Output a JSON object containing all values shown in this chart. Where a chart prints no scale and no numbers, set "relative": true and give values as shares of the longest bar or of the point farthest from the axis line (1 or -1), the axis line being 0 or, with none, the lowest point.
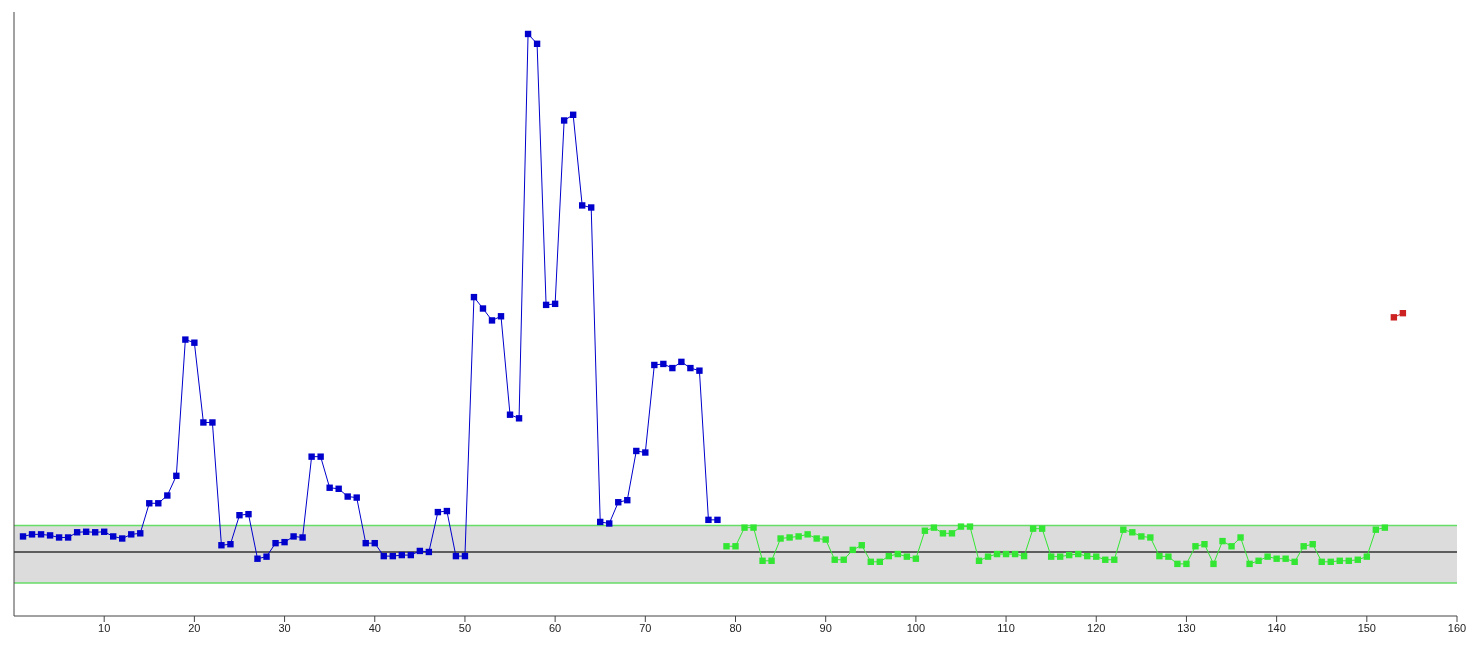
{
  "chart_data": {
    "type": "line",
    "relative": true,
    "marker": "square",
    "line_style": "solid",
    "grid": false,
    "legend": false,
    "xlim": [
      0,
      160
    ],
    "xticks": [
      10,
      20,
      30,
      40,
      50,
      60,
      70,
      80,
      90,
      100,
      110,
      120,
      130,
      140,
      150,
      160
    ],
    "series": [
      {
        "color": "#0000cc",
        "x": [
          1,
          2,
          3,
          4,
          5,
          6,
          7,
          8,
          9,
          10,
          11,
          12,
          13,
          14,
          15,
          16,
          17,
          18,
          19,
          20,
          21,
          22,
          23,
          24,
          25,
          26,
          27,
          28,
          29,
          30,
          31,
          32,
          33,
          34,
          35,
          36,
          37,
          38,
          39,
          40,
          41,
          42,
          43,
          44,
          45,
          46,
          47,
          48,
          49,
          50,
          51,
          52,
          53,
          54,
          55,
          56,
          57,
          58,
          59,
          60,
          61,
          62,
          63,
          64,
          65,
          66,
          67,
          68,
          69,
          70,
          71,
          72,
          73,
          74,
          75,
          76,
          77,
          78
        ],
        "values": [
          0.03,
          0.034,
          0.034,
          0.032,
          0.028,
          0.028,
          0.038,
          0.039,
          0.038,
          0.039,
          0.03,
          0.026,
          0.034,
          0.036,
          0.094,
          0.094,
          0.109,
          0.147,
          0.41,
          0.404,
          0.25,
          0.25,
          0.013,
          0.015,
          0.071,
          0.073,
          -0.013,
          -0.009,
          0.017,
          0.019,
          0.03,
          0.028,
          0.184,
          0.184,
          0.124,
          0.122,
          0.107,
          0.105,
          0.017,
          0.017,
          -0.008,
          -0.008,
          -0.006,
          -0.006,
          0.002,
          0,
          0.077,
          0.079,
          -0.008,
          -0.008,
          0.492,
          0.47,
          0.447,
          0.455,
          0.265,
          0.258,
          1,
          0.981,
          0.477,
          0.479,
          0.833,
          0.844,
          0.669,
          0.665,
          0.058,
          0.055,
          0.096,
          0.1,
          0.195,
          0.192,
          0.361,
          0.363,
          0.355,
          0.367,
          0.355,
          0.35,
          0.062,
          0.062
        ]
      },
      {
        "color": "#33e633",
        "x": [
          79,
          80,
          81,
          82,
          83,
          84,
          85,
          86,
          87,
          88,
          89,
          90,
          91,
          92,
          93,
          94,
          95,
          96,
          97,
          98,
          99,
          100,
          101,
          102,
          103,
          104,
          105,
          106,
          107,
          108,
          109,
          110,
          111,
          112,
          113,
          114,
          115,
          116,
          117,
          118,
          119,
          120,
          121,
          122,
          123,
          124,
          125,
          126,
          127,
          128,
          129,
          130,
          131,
          132,
          133,
          134,
          135,
          136,
          137,
          138,
          139,
          140,
          141,
          142,
          143,
          144,
          145,
          146,
          147,
          148,
          149,
          150,
          151,
          152
        ],
        "values": [
          0.011,
          0.011,
          0.047,
          0.047,
          -0.017,
          -0.017,
          0.026,
          0.028,
          0.03,
          0.034,
          0.026,
          0.024,
          -0.015,
          -0.015,
          0.004,
          0.013,
          -0.019,
          -0.019,
          -0.008,
          -0.004,
          -0.009,
          -0.013,
          0.041,
          0.047,
          0.036,
          0.036,
          0.049,
          0.049,
          -0.017,
          -0.009,
          -0.004,
          -0.004,
          -0.004,
          -0.008,
          0.045,
          0.045,
          -0.009,
          -0.009,
          -0.006,
          -0.004,
          -0.008,
          -0.009,
          -0.015,
          -0.015,
          0.043,
          0.038,
          0.03,
          0.028,
          -0.008,
          -0.009,
          -0.023,
          -0.023,
          0.011,
          0.015,
          -0.023,
          0.021,
          0.011,
          0.028,
          -0.023,
          -0.017,
          -0.009,
          -0.013,
          -0.013,
          -0.019,
          0.011,
          0.015,
          -0.019,
          -0.019,
          -0.017,
          -0.017,
          -0.015,
          -0.009,
          0.043,
          0.047
        ]
      },
      {
        "color": "#cc2222",
        "x": [
          153,
          154
        ],
        "values": [
          0.453,
          0.461
        ]
      }
    ],
    "bands": [
      {
        "axis": "y",
        "from": -0.06,
        "to": 0.051,
        "color": "#dcdcdc"
      }
    ],
    "ref_lines": [
      {
        "axis": "y",
        "value": 0,
        "color": "#333333"
      },
      {
        "axis": "y",
        "value": 0.051,
        "color": "#66dd66"
      },
      {
        "axis": "y",
        "value": -0.06,
        "color": "#66dd66"
      }
    ]
  }
}
